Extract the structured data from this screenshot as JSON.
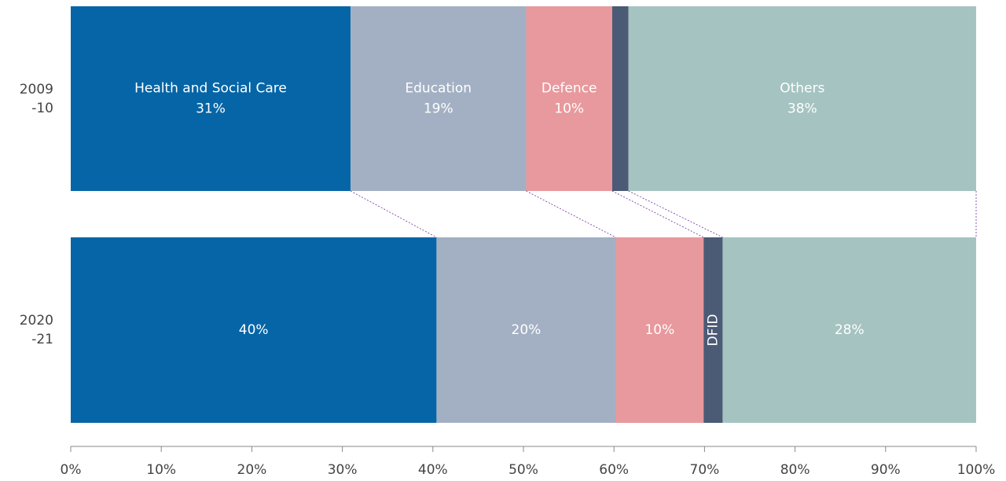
{
  "chart_data": {
    "type": "stacked-bar-horizontal",
    "categories": [
      "2009-10",
      "2020-21"
    ],
    "series": [
      {
        "name": "Health and Social Care",
        "color": "#0565a6",
        "values": [
          30.9,
          40.4
        ],
        "value_labels": [
          "31%",
          "40%"
        ]
      },
      {
        "name": "Education",
        "color": "#a3b0c3",
        "values": [
          19.4,
          19.8
        ],
        "value_labels": [
          "19%",
          "20%"
        ]
      },
      {
        "name": "Defence",
        "color": "#e8999d",
        "values": [
          9.5,
          9.7
        ],
        "value_labels": [
          "10%",
          "10%"
        ]
      },
      {
        "name": "DFID",
        "color": "#4b5a75",
        "values": [
          1.8,
          2.1
        ],
        "value_labels": [
          null,
          null
        ]
      },
      {
        "name": "Others",
        "color": "#a5c3c1",
        "values": [
          38.4,
          28.0
        ],
        "value_labels": [
          "38%",
          "28%"
        ]
      }
    ],
    "xlim": [
      0,
      100
    ],
    "xticks": [
      {
        "value": 0,
        "label": "0%"
      },
      {
        "value": 10,
        "label": "10%"
      },
      {
        "value": 20,
        "label": "20%"
      },
      {
        "value": 30,
        "label": "30%"
      },
      {
        "value": 40,
        "label": "40%"
      },
      {
        "value": 50,
        "label": "50%"
      },
      {
        "value": 60,
        "label": "60%"
      },
      {
        "value": 70,
        "label": "70%"
      },
      {
        "value": 80,
        "label": "80%"
      },
      {
        "value": 90,
        "label": "90%"
      },
      {
        "value": 100,
        "label": "100%"
      }
    ],
    "connector_color": "#7030a0"
  }
}
